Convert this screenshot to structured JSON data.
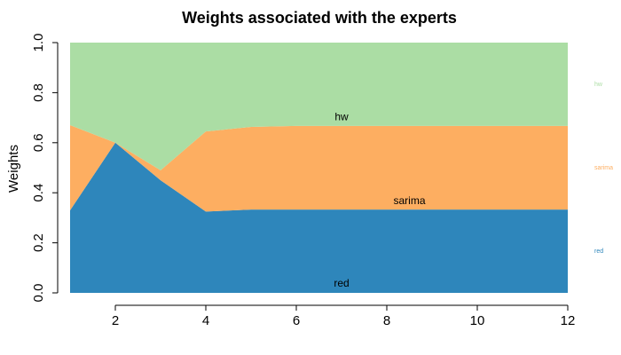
{
  "chart_data": {
    "type": "area",
    "stacked": true,
    "title": "Weights associated with the experts",
    "xlabel": "",
    "ylabel": "Weights",
    "xlim": [
      1,
      12
    ],
    "ylim": [
      0,
      1
    ],
    "x_ticks": [
      2,
      4,
      6,
      8,
      10,
      12
    ],
    "y_ticks": [
      "0.0",
      "0.2",
      "0.4",
      "0.6",
      "0.8",
      "1.0"
    ],
    "x": [
      1,
      2,
      3,
      4,
      5,
      6,
      7,
      8,
      9,
      10,
      11,
      12
    ],
    "series": [
      {
        "name": "red",
        "color": "#2e86bb",
        "values": [
          0.33,
          0.6,
          0.45,
          0.325,
          0.333,
          0.333,
          0.333,
          0.333,
          0.333,
          0.333,
          0.333,
          0.333
        ]
      },
      {
        "name": "sarima",
        "color": "#fdae61",
        "values": [
          0.34,
          0.0,
          0.04,
          0.32,
          0.33,
          0.334,
          0.334,
          0.334,
          0.334,
          0.334,
          0.334,
          0.334
        ]
      },
      {
        "name": "hw",
        "color": "#abdda4",
        "values": [
          0.33,
          0.4,
          0.51,
          0.355,
          0.337,
          0.333,
          0.333,
          0.333,
          0.333,
          0.333,
          0.333,
          0.333
        ]
      }
    ],
    "area_labels": [
      {
        "text": "hw",
        "x": 7,
        "y": 0.69
      },
      {
        "text": "sarima",
        "x": 8.5,
        "y": 0.355
      },
      {
        "text": "red",
        "x": 7,
        "y": 0.025
      }
    ],
    "legend": {
      "placement": "right",
      "entries": [
        "hw",
        "sarima",
        "red"
      ]
    }
  }
}
